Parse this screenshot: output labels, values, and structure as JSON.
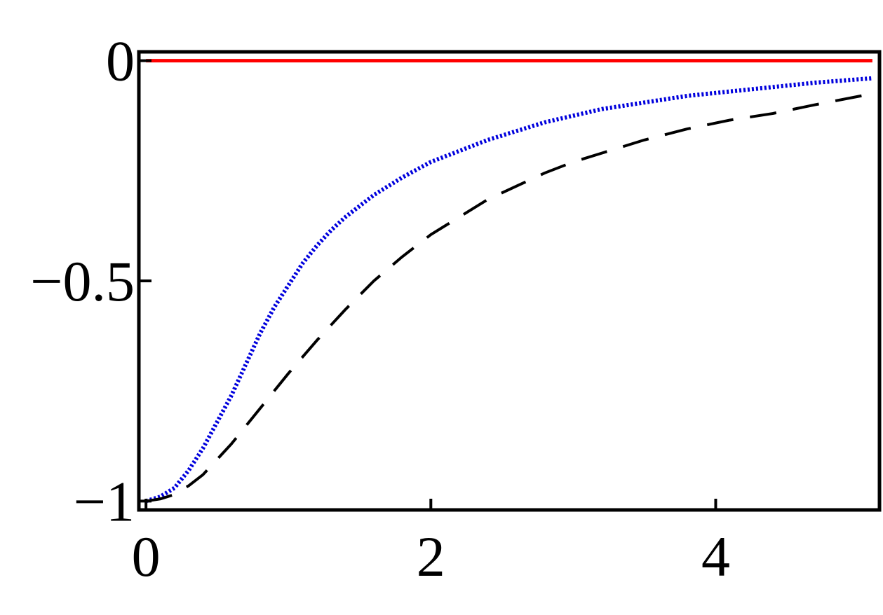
{
  "chart_data": {
    "type": "line",
    "title": "",
    "xlabel": "",
    "ylabel": "",
    "xlim": [
      -0.05,
      5.15
    ],
    "ylim": [
      -1.02,
      0.02
    ],
    "grid": false,
    "x_ticks": [
      0,
      2,
      4
    ],
    "x_tick_labels": [
      "0",
      "2",
      "4"
    ],
    "y_ticks": [
      0,
      -0.5,
      -1
    ],
    "y_tick_labels": [
      "0",
      "−0.5",
      "−1"
    ],
    "series": [
      {
        "color": "#ff0000",
        "style": "solid",
        "x": [
          0,
          5.1
        ],
        "y": [
          0,
          0
        ]
      },
      {
        "color": "#0000dd",
        "style": "dotted",
        "x": [
          0,
          0.1,
          0.2,
          0.3,
          0.4,
          0.5,
          0.6,
          0.7,
          0.8,
          0.9,
          1.0,
          1.1,
          1.2,
          1.3,
          1.4,
          1.5,
          1.6,
          1.8,
          2.0,
          2.2,
          2.4,
          2.6,
          2.8,
          3.0,
          3.2,
          3.5,
          3.8,
          4.1,
          4.4,
          4.7,
          5.1
        ],
        "y": [
          -1.0,
          -0.99,
          -0.97,
          -0.93,
          -0.88,
          -0.82,
          -0.76,
          -0.69,
          -0.62,
          -0.56,
          -0.51,
          -0.46,
          -0.42,
          -0.385,
          -0.355,
          -0.33,
          -0.305,
          -0.265,
          -0.23,
          -0.205,
          -0.18,
          -0.16,
          -0.14,
          -0.125,
          -0.11,
          -0.095,
          -0.08,
          -0.07,
          -0.06,
          -0.05,
          -0.04
        ]
      },
      {
        "color": "#000000",
        "style": "dashed",
        "x": [
          0,
          0.1,
          0.2,
          0.3,
          0.4,
          0.6,
          0.8,
          1.0,
          1.2,
          1.4,
          1.6,
          1.8,
          2.0,
          2.2,
          2.4,
          2.6,
          2.8,
          3.0,
          3.2,
          3.5,
          3.8,
          4.1,
          4.4,
          4.7,
          5.1
        ],
        "y": [
          -1.0,
          -0.995,
          -0.985,
          -0.965,
          -0.94,
          -0.87,
          -0.79,
          -0.71,
          -0.635,
          -0.565,
          -0.5,
          -0.445,
          -0.395,
          -0.355,
          -0.315,
          -0.285,
          -0.255,
          -0.23,
          -0.21,
          -0.18,
          -0.155,
          -0.135,
          -0.12,
          -0.1,
          -0.075
        ]
      }
    ]
  }
}
